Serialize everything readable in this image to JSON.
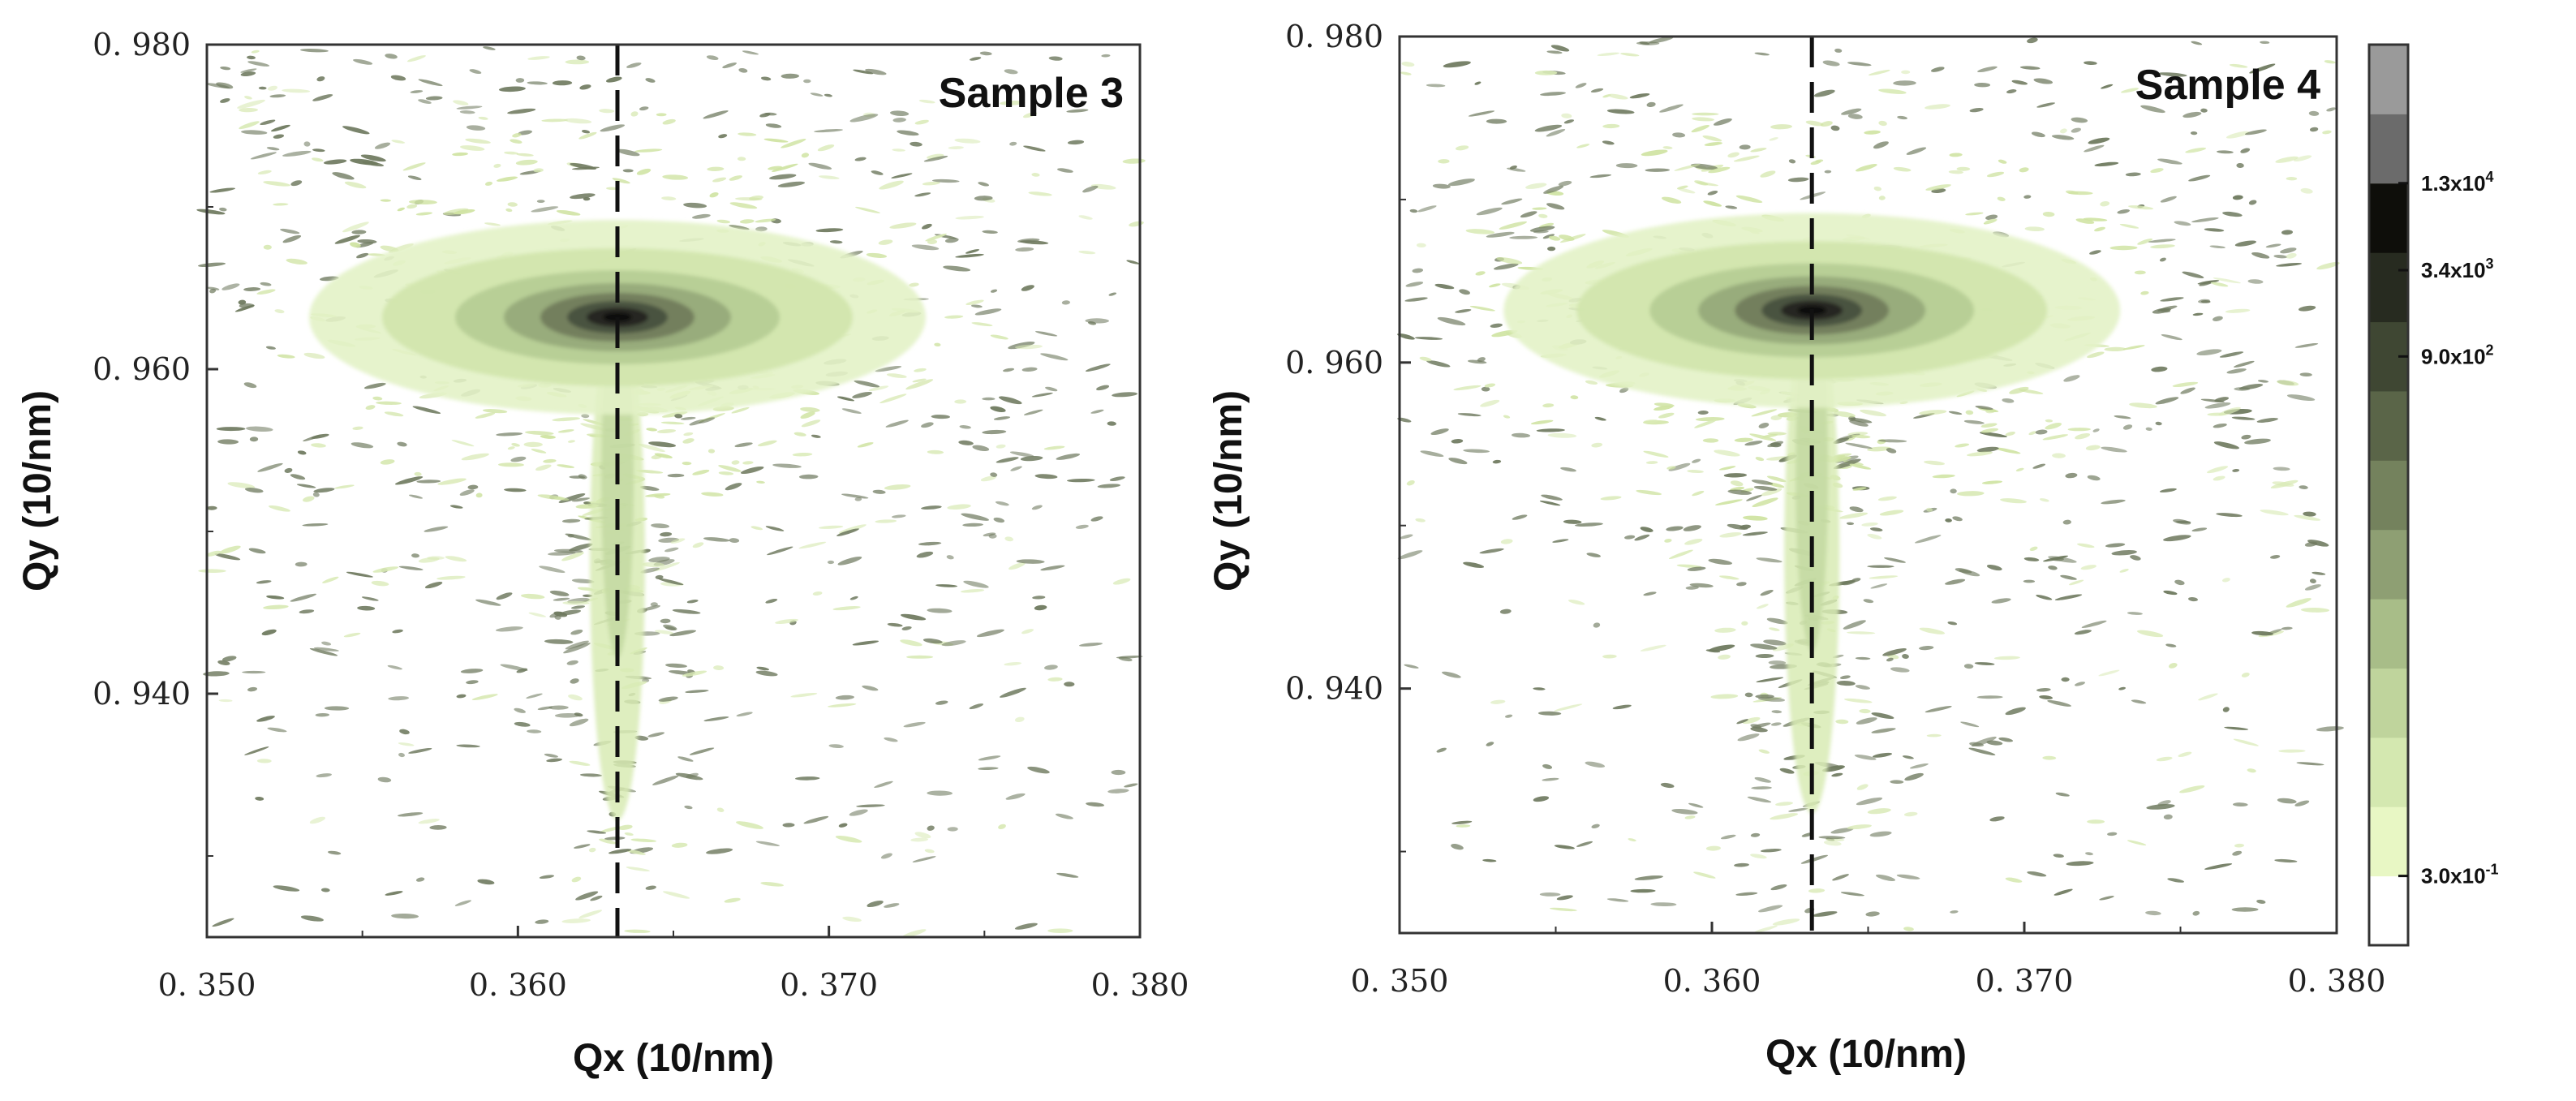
{
  "chart_data": [
    {
      "type": "heatmap",
      "title": "Sample 3",
      "xlabel": "Qx (10/nm)",
      "ylabel": "Qy (10/nm)",
      "xlim": [
        0.35,
        0.38
      ],
      "ylim": [
        0.925,
        0.98
      ],
      "xticks": [
        0.35,
        0.36,
        0.37,
        0.38
      ],
      "xtick_labels": [
        "0. 350",
        "0. 360",
        "0. 370",
        "0. 380"
      ],
      "yticks": [
        0.94,
        0.96,
        0.98
      ],
      "ytick_labels": [
        "0. 940",
        "0. 960",
        "0. 980"
      ],
      "peak": {
        "qx": 0.3632,
        "qy": 0.9632
      },
      "reference_line_qx": 0.3632,
      "color": "#6f7a5f"
    },
    {
      "type": "heatmap",
      "title": "Sample 4",
      "xlabel": "Qx (10/nm)",
      "ylabel": "Qy (10/nm)",
      "xlim": [
        0.35,
        0.38
      ],
      "ylim": [
        0.925,
        0.98
      ],
      "xticks": [
        0.35,
        0.36,
        0.37,
        0.38
      ],
      "xtick_labels": [
        "0. 350",
        "0. 360",
        "0. 370",
        "0. 380"
      ],
      "yticks": [
        0.94,
        0.96,
        0.98
      ],
      "ytick_labels": [
        "0. 940",
        "0. 960",
        "0. 980"
      ],
      "peak": {
        "qx": 0.3632,
        "qy": 0.9632
      },
      "reference_line_qx": 0.3632,
      "color": "#6f7a5f"
    }
  ],
  "colorbar": {
    "scale": "log",
    "levels": [
      {
        "color": "#ffffff"
      },
      {
        "color": "#e8f7c4"
      },
      {
        "color": "#d4e8b0"
      },
      {
        "color": "#bfd49c"
      },
      {
        "color": "#a8bd88"
      },
      {
        "color": "#8e9f73"
      },
      {
        "color": "#74825d"
      },
      {
        "color": "#5a6548"
      },
      {
        "color": "#3f4733"
      },
      {
        "color": "#272b20"
      },
      {
        "color": "#0e0e0a"
      },
      {
        "color": "#6b6b6b"
      },
      {
        "color": "#9a9a9a"
      }
    ],
    "tick_labels": [
      {
        "value": 0.3,
        "mantissa": "3.0x10",
        "exp": "-1"
      },
      {
        "value": 900,
        "mantissa": "9.0x10",
        "exp": "2"
      },
      {
        "value": 3400,
        "mantissa": "3.4x10",
        "exp": "3"
      },
      {
        "value": 13000,
        "mantissa": "1.3x10",
        "exp": "4"
      }
    ]
  }
}
